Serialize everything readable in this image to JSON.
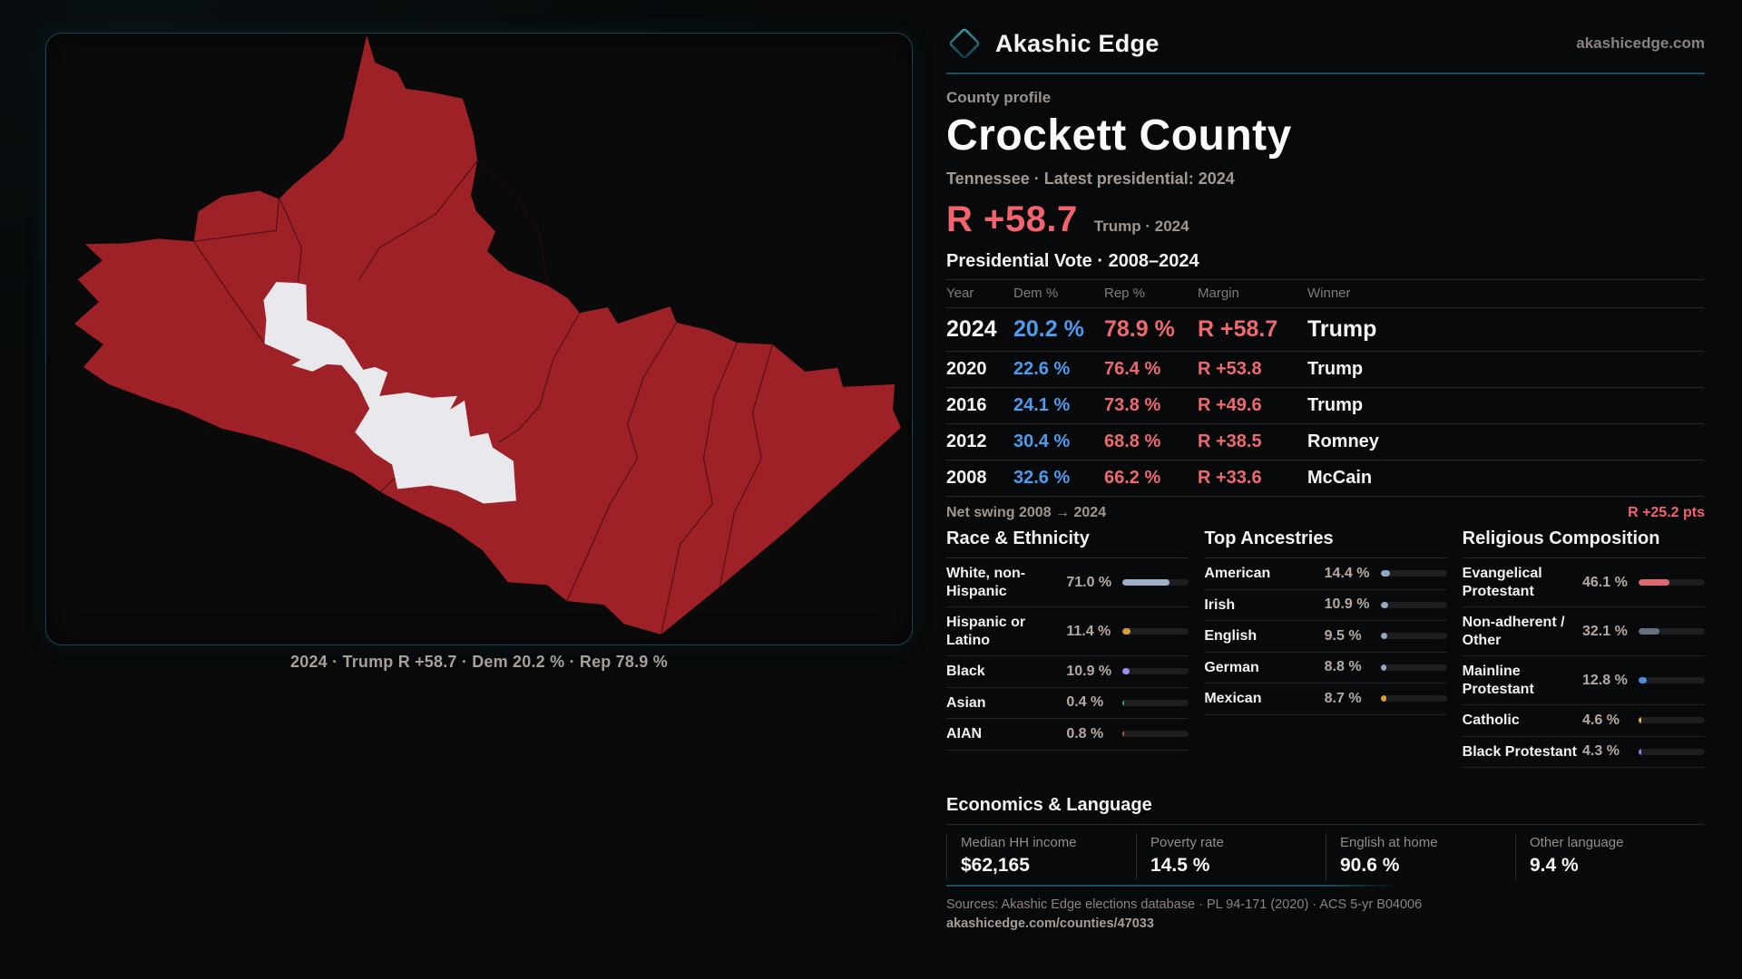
{
  "brand": {
    "name": "Akashic Edge",
    "domain": "akashicedge.com"
  },
  "profile": {
    "kicker": "County profile",
    "title": "Crockett County",
    "subtitle": "Tennessee · Latest presidential: 2024",
    "hero_margin": "R +58.7",
    "hero_context": "Trump · 2024"
  },
  "map": {
    "caption": "2024 · Trump R +58.7 · Dem 20.2 % · Rep 78.9 %",
    "county_fill": "#9e2127",
    "precinct_white": "#e9e9ed",
    "boundary_stroke": "#2a0b0e"
  },
  "colors": {
    "accent_teal": "#17505c",
    "dem_blue": "#4f9bf0",
    "rep_red": "#ee6a6e"
  },
  "table": {
    "title": "Presidential Vote · 2008–2024",
    "columns": [
      "Year",
      "Dem %",
      "Rep %",
      "Margin",
      "Winner"
    ],
    "rows": [
      {
        "year": "2024",
        "dem": "20.2 %",
        "rep": "78.9 %",
        "margin": "R +58.7",
        "winner": "Trump",
        "latest": true
      },
      {
        "year": "2020",
        "dem": "22.6 %",
        "rep": "76.4 %",
        "margin": "R +53.8",
        "winner": "Trump",
        "latest": false
      },
      {
        "year": "2016",
        "dem": "24.1 %",
        "rep": "73.8 %",
        "margin": "R +49.6",
        "winner": "Trump",
        "latest": false
      },
      {
        "year": "2012",
        "dem": "30.4 %",
        "rep": "68.8 %",
        "margin": "R +38.5",
        "winner": "Romney",
        "latest": false
      },
      {
        "year": "2008",
        "dem": "32.6 %",
        "rep": "66.2 %",
        "margin": "R +33.6",
        "winner": "McCain",
        "latest": false
      }
    ]
  },
  "net_swing": {
    "label": "Net swing 2008 → 2024",
    "value": "R +25.2 pts"
  },
  "demographics": [
    {
      "title": "Race & Ethnicity",
      "rows": [
        {
          "label": "White, non-Hispanic",
          "value": "71.0 %",
          "pct": 71.0,
          "color": "#9fb2c9"
        },
        {
          "label": "Hispanic or Latino",
          "value": "11.4 %",
          "pct": 11.4,
          "color": "#dd9b33"
        },
        {
          "label": "Black",
          "value": "10.9 %",
          "pct": 10.9,
          "color": "#9d8df5"
        },
        {
          "label": "Asian",
          "value": "0.4 %",
          "pct": 0.4,
          "color": "#2f9e8c"
        },
        {
          "label": "AIAN",
          "value": "0.8 %",
          "pct": 0.8,
          "color": "#bf5c22"
        }
      ]
    },
    {
      "title": "Top Ancestries",
      "rows": [
        {
          "label": "American",
          "value": "14.4 %",
          "pct": 14.4,
          "color": "#93a7c0"
        },
        {
          "label": "Irish",
          "value": "10.9 %",
          "pct": 10.9,
          "color": "#93a7c0"
        },
        {
          "label": "English",
          "value": "9.5 %",
          "pct": 9.5,
          "color": "#93a7c0"
        },
        {
          "label": "German",
          "value": "8.8 %",
          "pct": 8.8,
          "color": "#93a7c0"
        },
        {
          "label": "Mexican",
          "value": "8.7 %",
          "pct": 8.7,
          "color": "#dda237"
        }
      ]
    },
    {
      "title": "Religious Composition",
      "rows": [
        {
          "label": "Evangelical Protestant",
          "value": "46.1 %",
          "pct": 46.1,
          "color": "#de686d"
        },
        {
          "label": "Non-adherent / Other",
          "value": "32.1 %",
          "pct": 32.1,
          "color": "#68707f"
        },
        {
          "label": "Mainline Protestant",
          "value": "12.8 %",
          "pct": 12.8,
          "color": "#4a8fe0"
        },
        {
          "label": "Catholic",
          "value": "4.6 %",
          "pct": 4.6,
          "color": "#dfb23c"
        },
        {
          "label": "Black Protestant",
          "value": "4.3 %",
          "pct": 4.3,
          "color": "#8d7ef0"
        }
      ]
    }
  ],
  "economics": {
    "title": "Economics & Language",
    "stats": [
      {
        "label": "Median HH income",
        "value": "$62,165"
      },
      {
        "label": "Poverty rate",
        "value": "14.5 %"
      },
      {
        "label": "English at home",
        "value": "90.6 %"
      },
      {
        "label": "Other language",
        "value": "9.4 %"
      }
    ]
  },
  "footer": {
    "sources": "Sources: Akashic Edge elections database · PL 94-171 (2020) · ACS 5-yr B04006",
    "permalink": "akashicedge.com/counties/47033"
  }
}
